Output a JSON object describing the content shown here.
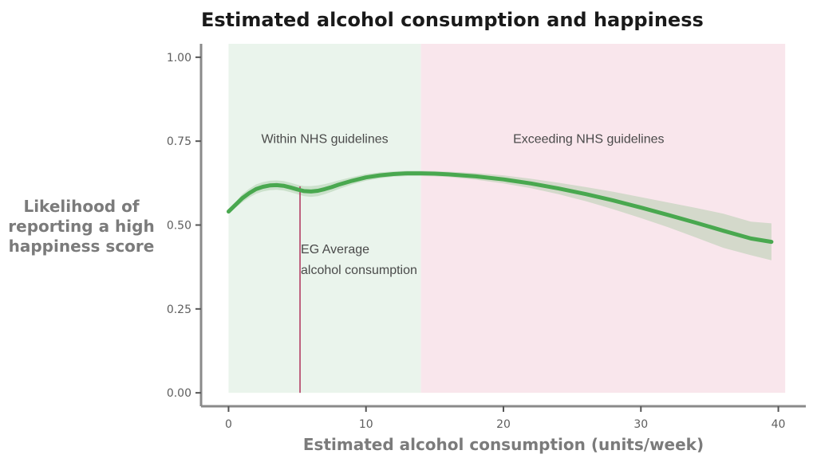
{
  "chart_data": {
    "type": "line",
    "title": "Estimated alcohol consumption and happiness",
    "xlabel": "Estimated alcohol consumption (units/week)",
    "ylabel_lines": [
      "Likelihood of",
      "reporting a high",
      "happiness score"
    ],
    "xlim": [
      -2,
      42
    ],
    "ylim": [
      -0.04,
      1.04
    ],
    "x_ticks": [
      0,
      10,
      20,
      30,
      40
    ],
    "x_tick_labels": [
      "0",
      "10",
      "20",
      "30",
      "40"
    ],
    "y_ticks": [
      0,
      0.25,
      0.5,
      0.75,
      1.0
    ],
    "y_tick_labels": [
      "0.00",
      "0.25",
      "0.50",
      "0.75",
      "1.00"
    ],
    "regions": [
      {
        "name": "within",
        "x_start": 0,
        "x_end": 14,
        "color": "#eaf4ec",
        "label": "Within NHS guidelines",
        "label_x": 7,
        "label_y": 0.745
      },
      {
        "name": "exceeding",
        "x_start": 14,
        "x_end": 40.5,
        "color": "#f9e6ec",
        "label": "Exceeding NHS guidelines",
        "label_x": 26.2,
        "label_y": 0.745
      }
    ],
    "series": [
      {
        "name": "Likelihood of reporting a high happiness score",
        "color": "#49a84f",
        "x": [
          0,
          0.5,
          1,
          1.5,
          2,
          2.5,
          3,
          3.5,
          4,
          4.5,
          5,
          5.5,
          6,
          6.5,
          7,
          7.5,
          8,
          9,
          10,
          11,
          12,
          13,
          14,
          15,
          16,
          18,
          20,
          22,
          24,
          26,
          28,
          30,
          32,
          34,
          36,
          38,
          39.5
        ],
        "y": [
          0.54,
          0.56,
          0.58,
          0.595,
          0.607,
          0.614,
          0.618,
          0.619,
          0.617,
          0.612,
          0.606,
          0.601,
          0.6,
          0.602,
          0.607,
          0.613,
          0.62,
          0.632,
          0.642,
          0.648,
          0.652,
          0.654,
          0.654,
          0.653,
          0.651,
          0.645,
          0.636,
          0.624,
          0.609,
          0.592,
          0.573,
          0.552,
          0.53,
          0.507,
          0.483,
          0.46,
          0.45
        ],
        "ci_lower": [
          0.535,
          0.552,
          0.568,
          0.582,
          0.593,
          0.6,
          0.604,
          0.605,
          0.603,
          0.598,
          0.592,
          0.586,
          0.584,
          0.586,
          0.592,
          0.599,
          0.607,
          0.621,
          0.632,
          0.639,
          0.644,
          0.646,
          0.646,
          0.645,
          0.643,
          0.635,
          0.624,
          0.61,
          0.592,
          0.571,
          0.547,
          0.521,
          0.493,
          0.463,
          0.432,
          0.41,
          0.395
        ],
        "ci_upper": [
          0.545,
          0.568,
          0.592,
          0.608,
          0.621,
          0.628,
          0.632,
          0.633,
          0.631,
          0.626,
          0.62,
          0.616,
          0.616,
          0.618,
          0.622,
          0.627,
          0.633,
          0.643,
          0.652,
          0.657,
          0.66,
          0.662,
          0.662,
          0.661,
          0.659,
          0.655,
          0.648,
          0.638,
          0.626,
          0.613,
          0.599,
          0.583,
          0.567,
          0.551,
          0.534,
          0.51,
          0.505
        ],
        "ci_color": "#a7c9a4"
      }
    ],
    "vline": {
      "x": 5.2,
      "y_from": 0,
      "y_to": 0.615,
      "color": "#b0325c",
      "label_lines": [
        "EG Average",
        "alcohol consumption"
      ]
    }
  }
}
